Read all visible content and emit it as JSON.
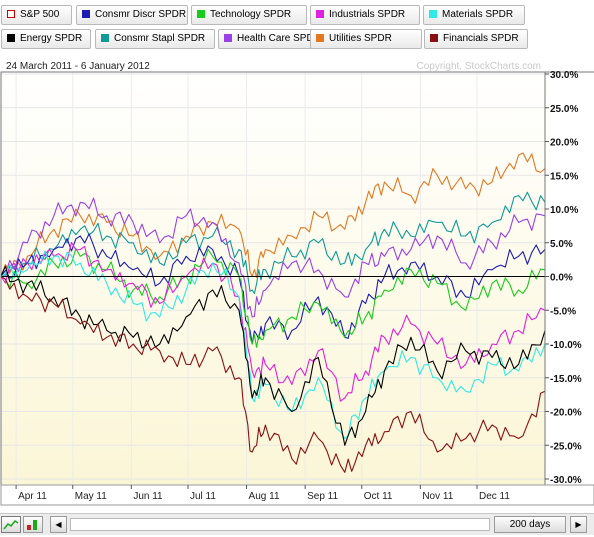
{
  "legend": [
    {
      "label": "S&P 500",
      "color": "#cc0000",
      "hollow": true
    },
    {
      "label": "Consmr Discr SPDR",
      "color": "#1c1cb4",
      "hollow": false
    },
    {
      "label": "Technology SPDR",
      "color": "#19cc19",
      "hollow": false
    },
    {
      "label": "Industrials SPDR",
      "color": "#e020e0",
      "hollow": false
    },
    {
      "label": "Materials SPDR",
      "color": "#30e8e8",
      "hollow": false
    },
    {
      "label": "Energy SPDR",
      "color": "#000000",
      "hollow": false
    },
    {
      "label": "Consmr Stapl SPDR",
      "color": "#0e9a9a",
      "hollow": false
    },
    {
      "label": "Health Care SPDR",
      "color": "#9a40e6",
      "hollow": false
    },
    {
      "label": "Utilities SPDR",
      "color": "#e47820",
      "hollow": false
    },
    {
      "label": "Financials SPDR",
      "color": "#8a1010",
      "hollow": false
    }
  ],
  "date_range": "24 March 2011 - 6 January 2012",
  "watermark": "Copyright, StockCharts.com",
  "bottom": {
    "range_label": "200 days",
    "left_arrow": "◀",
    "right_arrow": "▶"
  },
  "chart_data": {
    "type": "line",
    "x_labels": [
      "Apr 11",
      "May 11",
      "Jun 11",
      "Jul 11",
      "Aug 11",
      "Sep 11",
      "Oct 11",
      "Nov 11",
      "Dec 11"
    ],
    "y_ticks": [
      "30.0%",
      "25.0%",
      "20.0%",
      "15.0%",
      "10.0%",
      "5.0%",
      "0.0%",
      "-5.0%",
      "-10.0%",
      "-15.0%",
      "-20.0%",
      "-25.0%",
      "-30.0%"
    ],
    "ylim": [
      -30,
      30
    ],
    "x": [
      "2011-03-24",
      "2011-04-07",
      "2011-04-21",
      "2011-05-05",
      "2011-05-19",
      "2011-06-02",
      "2011-06-16",
      "2011-06-30",
      "2011-07-14",
      "2011-07-28",
      "2011-08-04",
      "2011-08-11",
      "2011-08-25",
      "2011-09-08",
      "2011-09-22",
      "2011-10-03",
      "2011-10-13",
      "2011-10-27",
      "2011-11-10",
      "2011-11-25",
      "2011-12-09",
      "2011-12-23",
      "2012-01-06"
    ],
    "series": [
      {
        "name": "Utilities SPDR",
        "color": "#e47820",
        "values": [
          0,
          3,
          7,
          9,
          8,
          6,
          3,
          6,
          8,
          7,
          0,
          4,
          6,
          9,
          7,
          11,
          14,
          12,
          15,
          13,
          14,
          18,
          16
        ]
      },
      {
        "name": "Consmr Stapl SPDR",
        "color": "#0e9a9a",
        "values": [
          0,
          2,
          4,
          7,
          6,
          5,
          2,
          5,
          6,
          4,
          -2,
          1,
          3,
          5,
          2,
          4,
          7,
          6,
          8,
          6,
          8,
          12,
          11
        ]
      },
      {
        "name": "Health Care SPDR",
        "color": "#9a40e6",
        "values": [
          0,
          5,
          9,
          11,
          9,
          8,
          5,
          9,
          8,
          2,
          -6,
          -2,
          2,
          1,
          -3,
          2,
          3,
          4,
          6,
          2,
          5,
          8,
          9
        ]
      },
      {
        "name": "Consmr Discr SPDR",
        "color": "#1c1cb4",
        "values": [
          0,
          2,
          4,
          6,
          3,
          1,
          -1,
          3,
          4,
          0,
          -10,
          -7,
          -8,
          -3,
          -9,
          -4,
          0,
          2,
          0,
          -3,
          1,
          3,
          4
        ]
      },
      {
        "name": "Technology SPDR",
        "color": "#19cc19",
        "values": [
          0,
          -1,
          2,
          3,
          1,
          -2,
          -3,
          0,
          3,
          0,
          -10,
          -8,
          -6,
          -4,
          -9,
          -6,
          -2,
          1,
          -1,
          -5,
          -1,
          -2,
          1
        ]
      },
      {
        "name": "Industrials SPDR",
        "color": "#e020e0",
        "values": [
          0,
          2,
          3,
          4,
          1,
          -1,
          -4,
          0,
          2,
          -3,
          -14,
          -13,
          -16,
          -11,
          -18,
          -14,
          -9,
          -7,
          -10,
          -13,
          -10,
          -8,
          -5
        ]
      },
      {
        "name": "Materials SPDR",
        "color": "#30e8e8",
        "values": [
          0,
          1,
          3,
          2,
          -1,
          -4,
          -6,
          -2,
          2,
          -3,
          -18,
          -16,
          -20,
          -15,
          -24,
          -18,
          -14,
          -12,
          -15,
          -17,
          -13,
          -14,
          -10
        ]
      },
      {
        "name": "Energy SPDR",
        "color": "#000000",
        "values": [
          0,
          -1,
          -3,
          -6,
          -8,
          -9,
          -10,
          -6,
          -2,
          -5,
          -18,
          -15,
          -20,
          -12,
          -25,
          -20,
          -14,
          -9,
          -14,
          -11,
          -12,
          -13,
          -8
        ]
      },
      {
        "name": "Financials SPDR",
        "color": "#8a1010",
        "values": [
          0,
          -3,
          -4,
          -7,
          -9,
          -10,
          -11,
          -13,
          -11,
          -15,
          -26,
          -22,
          -27,
          -24,
          -29,
          -25,
          -23,
          -20,
          -26,
          -24,
          -22,
          -24,
          -17
        ]
      }
    ]
  }
}
